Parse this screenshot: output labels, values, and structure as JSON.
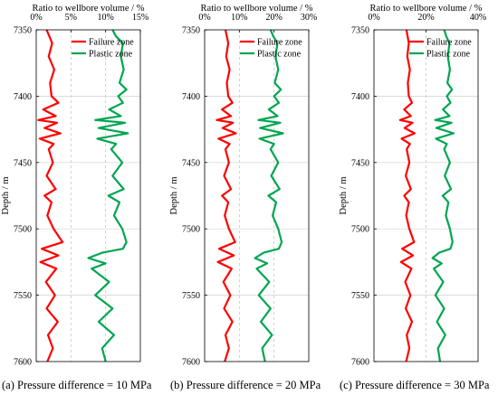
{
  "chart_data": [
    {
      "type": "line",
      "caption": "(a) Pressure difference = 10 MPa",
      "xlabel": "Ratio to wellbore volume / %",
      "ylabel": "Depth / m",
      "xticks": [
        "0%",
        "5%",
        "10%",
        "15%"
      ],
      "xlim": [
        0,
        15
      ],
      "yticks": [
        "7350",
        "7400",
        "7450",
        "7500",
        "7550",
        "7600"
      ],
      "ylim": [
        7350,
        7600
      ],
      "y_inverted": true,
      "grid": true,
      "legend": "top-right",
      "series": [
        {
          "name": "Failure zone",
          "color": "#ff0000",
          "depth": [
            7350,
            7360,
            7370,
            7380,
            7390,
            7400,
            7405,
            7410,
            7415,
            7418,
            7420,
            7424,
            7428,
            7432,
            7436,
            7440,
            7450,
            7460,
            7470,
            7475,
            7480,
            7490,
            7500,
            7510,
            7515,
            7520,
            7525,
            7530,
            7540,
            7550,
            7560,
            7570,
            7580,
            7590,
            7600
          ],
          "values": [
            1.5,
            2.3,
            1.8,
            2.6,
            2.0,
            2.2,
            3.2,
            1.0,
            2.8,
            0.3,
            3.0,
            1.2,
            3.5,
            0.5,
            2.5,
            1.8,
            2.4,
            1.5,
            2.8,
            1.2,
            2.2,
            1.6,
            2.5,
            3.8,
            0.8,
            3.2,
            0.6,
            2.9,
            1.4,
            2.7,
            1.5,
            3.1,
            1.7,
            2.4,
            1.6
          ]
        },
        {
          "name": "Plastic zone",
          "color": "#00a651",
          "depth": [
            7350,
            7355,
            7360,
            7370,
            7380,
            7390,
            7395,
            7400,
            7405,
            7410,
            7415,
            7418,
            7420,
            7424,
            7428,
            7432,
            7436,
            7440,
            7450,
            7460,
            7470,
            7475,
            7480,
            7490,
            7500,
            7510,
            7515,
            7518,
            7522,
            7526,
            7530,
            7540,
            7550,
            7560,
            7570,
            7580,
            7590,
            7600
          ],
          "values": [
            11.0,
            11.5,
            12.5,
            12.2,
            12.6,
            12.0,
            13.0,
            11.8,
            12.5,
            10.5,
            12.2,
            8.5,
            12.8,
            9.0,
            13.2,
            8.8,
            11.5,
            10.8,
            12.4,
            11.0,
            12.6,
            10.4,
            12.0,
            11.2,
            12.4,
            13.0,
            12.5,
            9.5,
            7.5,
            10.0,
            8.0,
            10.5,
            8.5,
            11.0,
            9.0,
            11.2,
            9.5,
            10.0
          ]
        }
      ]
    },
    {
      "type": "line",
      "caption": "(b) Pressure difference = 20 MPa",
      "xlabel": "Ratio to wellbore volume / %",
      "ylabel": "Depth / m",
      "xticks": [
        "0%",
        "10%",
        "20%",
        "30%"
      ],
      "xlim": [
        0,
        30
      ],
      "yticks": [
        "7350",
        "7400",
        "7450",
        "7500",
        "7550",
        "7600"
      ],
      "ylim": [
        7350,
        7600
      ],
      "y_inverted": true,
      "grid": true,
      "legend": "top-right",
      "series": [
        {
          "name": "Failure zone",
          "color": "#ff0000",
          "depth": [
            7350,
            7360,
            7370,
            7380,
            7390,
            7400,
            7405,
            7410,
            7415,
            7418,
            7420,
            7424,
            7428,
            7432,
            7436,
            7440,
            7450,
            7460,
            7470,
            7475,
            7480,
            7490,
            7500,
            7510,
            7515,
            7520,
            7525,
            7530,
            7540,
            7550,
            7560,
            7570,
            7580,
            7590,
            7600
          ],
          "values": [
            6.0,
            6.8,
            6.2,
            7.2,
            6.4,
            6.8,
            8.0,
            5.0,
            7.6,
            3.5,
            8.2,
            5.2,
            9.0,
            4.0,
            7.2,
            6.0,
            7.0,
            5.6,
            7.6,
            5.0,
            6.8,
            5.8,
            7.0,
            8.8,
            4.2,
            8.4,
            3.8,
            7.8,
            5.4,
            7.4,
            5.6,
            8.0,
            6.0,
            7.0,
            5.8
          ]
        },
        {
          "name": "Plastic zone",
          "color": "#00a651",
          "depth": [
            7350,
            7355,
            7360,
            7370,
            7380,
            7390,
            7395,
            7400,
            7405,
            7410,
            7415,
            7418,
            7420,
            7424,
            7428,
            7432,
            7436,
            7440,
            7450,
            7460,
            7470,
            7475,
            7480,
            7490,
            7500,
            7510,
            7515,
            7518,
            7522,
            7526,
            7530,
            7540,
            7550,
            7560,
            7570,
            7580,
            7590,
            7600
          ],
          "values": [
            19.0,
            19.8,
            21.0,
            20.4,
            21.2,
            20.2,
            22.0,
            20.0,
            21.4,
            18.5,
            21.0,
            15.5,
            21.8,
            16.0,
            22.6,
            15.8,
            20.0,
            19.0,
            21.2,
            19.2,
            21.6,
            18.4,
            20.6,
            19.6,
            21.2,
            22.2,
            21.4,
            17.0,
            14.5,
            18.0,
            15.0,
            18.6,
            15.6,
            19.0,
            16.2,
            19.4,
            16.6,
            17.4
          ]
        }
      ]
    },
    {
      "type": "line",
      "caption": "(c) Pressure difference = 30 MPa",
      "xlabel": "Ratio to wellbore volume / %",
      "ylabel": "Depth / m",
      "xticks": [
        "0%",
        "20%",
        "40%"
      ],
      "xlim": [
        0,
        40
      ],
      "yticks": [
        "7350",
        "7400",
        "7450",
        "7500",
        "7550",
        "7600"
      ],
      "ylim": [
        7350,
        7600
      ],
      "y_inverted": true,
      "grid": true,
      "legend": "top-right",
      "series": [
        {
          "name": "Failure zone",
          "color": "#ff0000",
          "depth": [
            7350,
            7360,
            7370,
            7380,
            7390,
            7400,
            7405,
            7410,
            7415,
            7418,
            7420,
            7424,
            7428,
            7432,
            7436,
            7440,
            7450,
            7460,
            7470,
            7475,
            7480,
            7490,
            7500,
            7510,
            7515,
            7520,
            7525,
            7530,
            7540,
            7550,
            7560,
            7570,
            7580,
            7590,
            7600
          ],
          "values": [
            12.5,
            13.4,
            12.8,
            13.8,
            13.0,
            13.4,
            14.6,
            11.6,
            14.2,
            10.0,
            14.8,
            11.8,
            15.6,
            10.6,
            13.8,
            12.6,
            13.6,
            12.2,
            14.2,
            11.6,
            13.4,
            12.4,
            13.6,
            15.4,
            10.8,
            15.0,
            10.4,
            14.4,
            12.0,
            14.0,
            12.2,
            14.6,
            12.6,
            13.6,
            12.4
          ]
        },
        {
          "name": "Plastic zone",
          "color": "#00a651",
          "depth": [
            7350,
            7355,
            7360,
            7370,
            7380,
            7390,
            7395,
            7400,
            7405,
            7410,
            7415,
            7418,
            7420,
            7424,
            7428,
            7432,
            7436,
            7440,
            7450,
            7460,
            7470,
            7475,
            7480,
            7490,
            7500,
            7510,
            7515,
            7518,
            7522,
            7526,
            7530,
            7540,
            7550,
            7560,
            7570,
            7580,
            7590,
            7600
          ],
          "values": [
            27.0,
            27.8,
            29.0,
            28.4,
            29.2,
            28.2,
            30.0,
            28.0,
            29.4,
            26.5,
            29.0,
            23.5,
            29.8,
            24.0,
            30.6,
            23.8,
            28.0,
            27.0,
            29.2,
            27.2,
            29.6,
            26.4,
            28.6,
            27.6,
            29.2,
            30.2,
            29.4,
            25.0,
            22.5,
            26.0,
            23.0,
            26.6,
            23.6,
            27.0,
            24.2,
            27.4,
            24.6,
            25.4
          ]
        }
      ]
    }
  ]
}
